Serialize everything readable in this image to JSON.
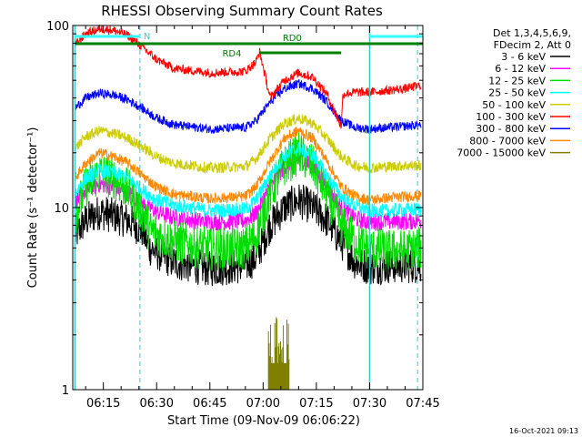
{
  "chart_data": {
    "type": "line",
    "title": "RHESSI Observing Summary Count Rates",
    "xlabel": "Start Time (09-Nov-09 06:06:22)",
    "ylabel": "Count Rate (s⁻¹ detector⁻¹)",
    "yscale": "log",
    "ylim": [
      1,
      100
    ],
    "xlim_minutes": [
      6.37,
      105.0
    ],
    "x_ticks": [
      {
        "label": "06:15",
        "minutes": 15
      },
      {
        "label": "06:30",
        "minutes": 30
      },
      {
        "label": "06:45",
        "minutes": 45
      },
      {
        "label": "07:00",
        "minutes": 60
      },
      {
        "label": "07:15",
        "minutes": 75
      },
      {
        "label": "07:30",
        "minutes": 90
      },
      {
        "label": "07:45",
        "minutes": 105
      }
    ],
    "y_ticks": [
      {
        "label": "1",
        "value": 1
      },
      {
        "label": "10",
        "value": 10
      },
      {
        "label": "100",
        "value": 100
      }
    ],
    "legend": {
      "placement": "right",
      "header": [
        "Det 1,3,4,5,6,9,",
        "FDecim 2, Att 0"
      ],
      "entries": [
        {
          "label": "3 - 6 keV",
          "color": "#000000"
        },
        {
          "label": "6 - 12 keV",
          "color": "#ff00ff"
        },
        {
          "label": "12 - 25 keV",
          "color": "#00dd00"
        },
        {
          "label": "25 - 50 keV",
          "color": "#00ffff"
        },
        {
          "label": "50 - 100 keV",
          "color": "#cccc00"
        },
        {
          "label": "100 - 300 keV",
          "color": "#ff0000"
        },
        {
          "label": "300 - 800 keV",
          "color": "#0000ff"
        },
        {
          "label": "800 - 7000 keV",
          "color": "#ff8800"
        },
        {
          "label": "7000 - 15000 keV",
          "color": "#808000"
        }
      ]
    },
    "annotations": {
      "night_label": "N",
      "night_bars_minutes": [
        [
          7.0,
          25.3
        ],
        [
          90.0,
          105.0
        ]
      ],
      "night_dashed_minutes": [
        25.3,
        103.5
      ],
      "night_solid_minutes": [
        7.0,
        90.0
      ],
      "rd0_label": "RD0",
      "rd0_bar_minutes": [
        7.0,
        105.0
      ],
      "rd4_label": "RD4",
      "rd4_bar_minutes": [
        59.0,
        82.0
      ]
    },
    "series": [
      {
        "name": "3 - 6 keV",
        "color": "#000000",
        "noise": 0.1,
        "x": [
          7,
          10,
          14,
          18,
          22,
          26,
          28,
          35,
          45,
          55,
          58,
          62,
          66,
          70,
          74,
          78,
          82,
          86,
          90,
          95,
          100,
          104.5
        ],
        "y": [
          7.0,
          8.5,
          9.5,
          9.0,
          8.5,
          7.5,
          6.0,
          5.0,
          4.6,
          4.8,
          5.3,
          8.0,
          10.0,
          11.0,
          10.0,
          8.5,
          6.5,
          5.0,
          4.7,
          4.8,
          4.8,
          4.8
        ]
      },
      {
        "name": "6 - 12 keV",
        "color": "#ff00ff",
        "noise": 0.05,
        "x": [
          7,
          10,
          14,
          18,
          22,
          26,
          30,
          35,
          45,
          55,
          58,
          62,
          66,
          70,
          74,
          78,
          82,
          86,
          90,
          95,
          100,
          104.5
        ],
        "y": [
          10.5,
          12.5,
          13.5,
          13.0,
          12.0,
          10.5,
          9.5,
          8.8,
          8.3,
          8.5,
          9.3,
          13.0,
          17.0,
          18.5,
          17.0,
          13.0,
          10.0,
          8.7,
          8.3,
          8.4,
          8.4,
          8.5
        ]
      },
      {
        "name": "12 - 25 keV",
        "color": "#00dd00",
        "noise": 0.12,
        "x": [
          7,
          10,
          14,
          18,
          22,
          26,
          28,
          35,
          45,
          55,
          58,
          62,
          66,
          70,
          74,
          78,
          82,
          86,
          90,
          95,
          100,
          104.5
        ],
        "y": [
          9.0,
          13.0,
          15.5,
          14.5,
          12.5,
          9.5,
          7.5,
          6.5,
          5.9,
          6.0,
          7.0,
          12.0,
          17.0,
          20.0,
          17.0,
          12.0,
          8.0,
          6.5,
          5.9,
          5.8,
          5.8,
          6.0
        ]
      },
      {
        "name": "25 - 50 keV",
        "color": "#00ffff",
        "noise": 0.04,
        "x": [
          7,
          10,
          14,
          18,
          22,
          26,
          30,
          35,
          45,
          55,
          58,
          62,
          66,
          70,
          74,
          78,
          82,
          86,
          90,
          95,
          100,
          104.5
        ],
        "y": [
          12.0,
          14.5,
          16.0,
          15.5,
          14.5,
          12.5,
          11.0,
          10.3,
          9.6,
          9.8,
          11.0,
          15.0,
          19.5,
          21.0,
          19.5,
          15.0,
          11.5,
          10.2,
          9.6,
          9.6,
          9.7,
          9.8
        ]
      },
      {
        "name": "50 - 100 keV",
        "color": "#cccc00",
        "noise": 0.03,
        "x": [
          7,
          10,
          14,
          18,
          22,
          26,
          30,
          35,
          45,
          55,
          58,
          62,
          66,
          70,
          74,
          78,
          82,
          86,
          90,
          95,
          100,
          104.5
        ],
        "y": [
          21.0,
          24.5,
          26.5,
          25.5,
          24.0,
          21.5,
          19.0,
          17.5,
          16.5,
          16.8,
          18.5,
          24.0,
          29.0,
          31.0,
          29.0,
          24.0,
          19.0,
          17.0,
          16.5,
          16.8,
          17.0,
          17.0
        ]
      },
      {
        "name": "800 - 7000 keV",
        "color": "#ff8800",
        "noise": 0.03,
        "x": [
          7,
          10,
          14,
          18,
          22,
          26,
          30,
          35,
          45,
          55,
          58,
          62,
          66,
          70,
          74,
          78,
          82,
          86,
          90,
          95,
          100,
          104.5
        ],
        "y": [
          14.5,
          17.5,
          20.0,
          19.0,
          17.5,
          15.0,
          13.0,
          11.8,
          11.2,
          11.5,
          13.0,
          18.0,
          24.0,
          26.5,
          24.0,
          18.0,
          13.0,
          11.5,
          11.0,
          11.3,
          11.5,
          11.6
        ]
      },
      {
        "name": "300 - 800 keV",
        "color": "#0000ff",
        "noise": 0.025,
        "x": [
          7,
          10,
          14,
          18,
          22,
          26,
          30,
          35,
          45,
          55,
          58,
          62,
          66,
          70,
          74,
          78,
          82,
          86,
          90,
          95,
          100,
          104.5
        ],
        "y": [
          35.0,
          40.0,
          42.5,
          41.5,
          39.0,
          35.0,
          31.0,
          28.5,
          27.0,
          27.5,
          30.0,
          38.0,
          45.0,
          48.0,
          45.0,
          38.0,
          30.0,
          27.5,
          27.0,
          27.5,
          28.0,
          28.5
        ]
      },
      {
        "name": "100 - 300 keV",
        "color": "#ff0000",
        "noise": 0.025,
        "x": [
          7,
          10,
          14,
          18,
          22,
          26,
          30,
          35,
          45,
          55,
          58,
          59,
          62,
          66,
          70,
          74,
          78,
          80,
          82,
          82.5,
          86,
          90,
          95,
          100,
          104.5
        ],
        "y": [
          78.0,
          90.0,
          96.0,
          94.0,
          88.0,
          76.0,
          65.0,
          58.0,
          55.0,
          56.0,
          63.0,
          72.0,
          40.0,
          50.0,
          55.0,
          52.0,
          42.0,
          34.0,
          28.0,
          42.0,
          43.0,
          43.0,
          44.0,
          45.0,
          47.0
        ]
      },
      {
        "name": "7000 - 15000 keV",
        "color": "#808000",
        "noise": 0.0,
        "x": [],
        "y": [],
        "bursts_minutes": [
          [
            61.5,
            67.5
          ]
        ],
        "burst_range": [
          1,
          2.9
        ]
      }
    ]
  },
  "footer": {
    "timestamp": "16-Oct-2021 09:13"
  }
}
